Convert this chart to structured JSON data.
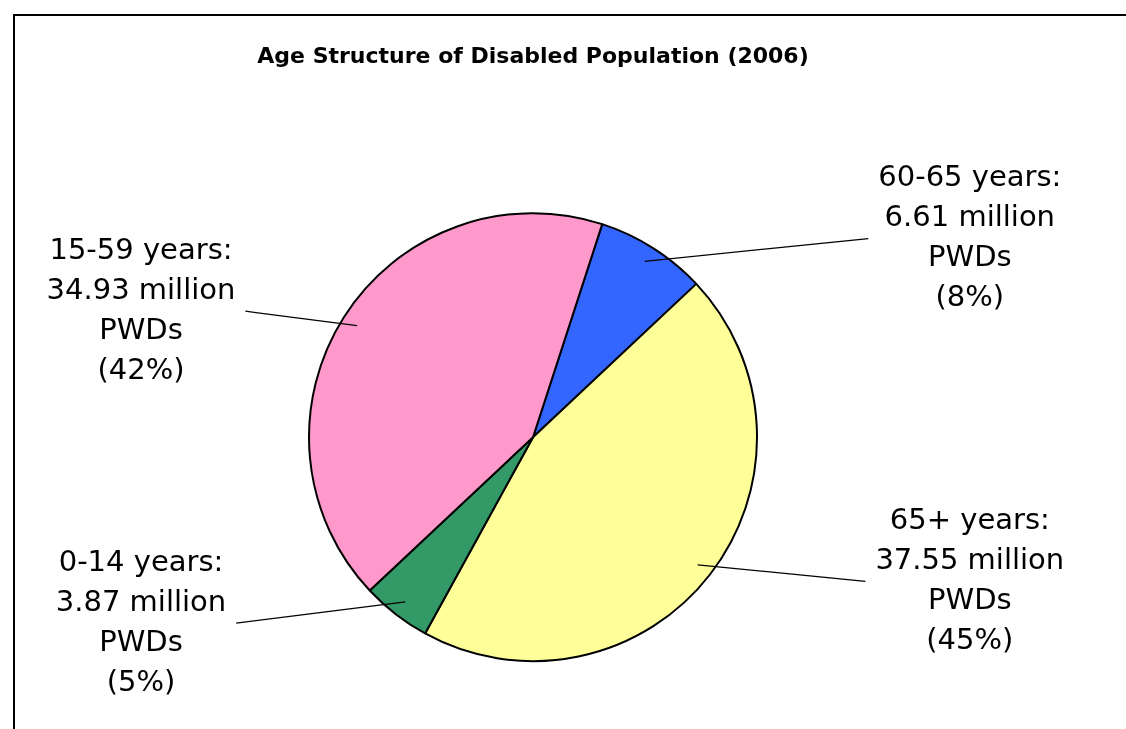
{
  "chart_data": {
    "type": "pie",
    "title": "Age Structure of Disabled Population (2006)",
    "categories": [
      "60-65 years",
      "65+ years",
      "0-14 years",
      "15-59 years"
    ],
    "values": [
      8,
      45,
      5,
      42
    ],
    "colors": [
      "#3366ff",
      "#ffff99",
      "#339966",
      "#ff99cc"
    ],
    "value_labels": [
      ":\n6.61 million\nPWDs\n(8%)",
      ":\n37.55 million\nPWDs\n(45%)",
      ":\n3.87 million\nPWDs\n(5%)",
      ":\n34.93 million\nPWDs\n(42%)"
    ],
    "legend": false
  }
}
